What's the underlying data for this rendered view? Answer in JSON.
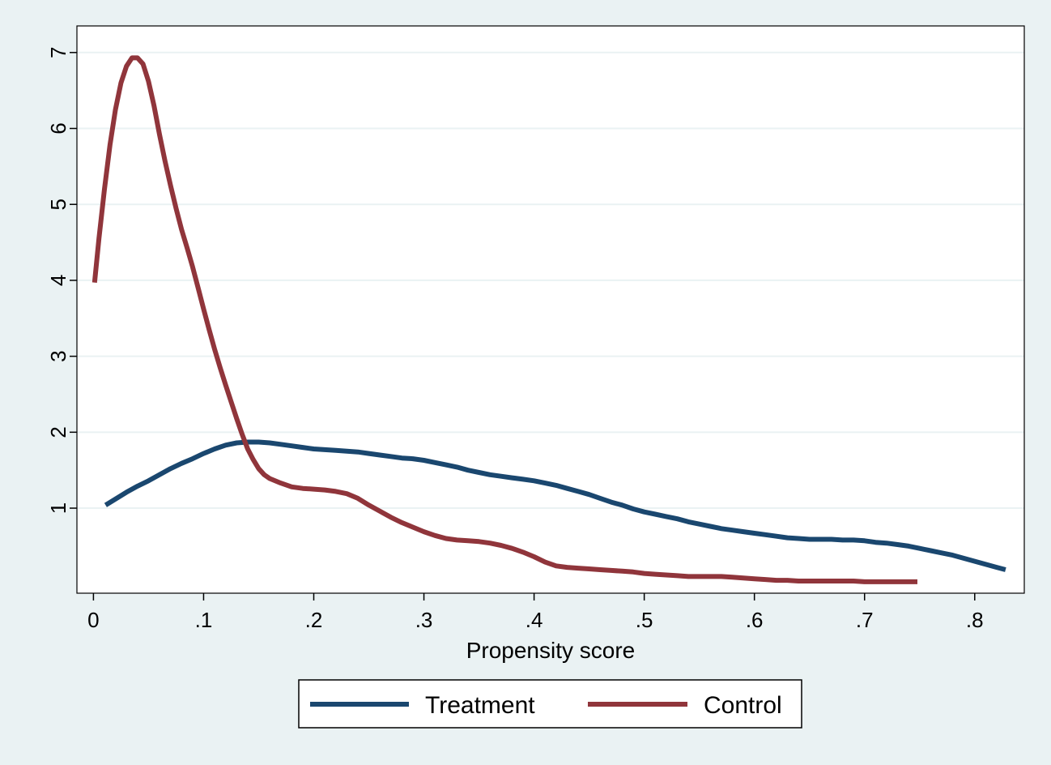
{
  "chart_data": {
    "type": "line",
    "title": "",
    "xlabel": "Propensity score",
    "ylabel": "",
    "xlim": [
      -0.015,
      0.845
    ],
    "ylim": [
      -0.12,
      7.35
    ],
    "x_ticks": [
      {
        "value": 0,
        "label": "0"
      },
      {
        "value": 0.1,
        "label": ".1"
      },
      {
        "value": 0.2,
        "label": ".2"
      },
      {
        "value": 0.3,
        "label": ".3"
      },
      {
        "value": 0.4,
        "label": ".4"
      },
      {
        "value": 0.5,
        "label": ".5"
      },
      {
        "value": 0.6,
        "label": ".6"
      },
      {
        "value": 0.7,
        "label": ".7"
      },
      {
        "value": 0.8,
        "label": ".8"
      }
    ],
    "y_ticks": [
      {
        "value": 1,
        "label": "1"
      },
      {
        "value": 2,
        "label": "2"
      },
      {
        "value": 3,
        "label": "3"
      },
      {
        "value": 4,
        "label": "4"
      },
      {
        "value": 5,
        "label": "5"
      },
      {
        "value": 6,
        "label": "6"
      },
      {
        "value": 7,
        "label": "7"
      }
    ],
    "grid": "horizontal",
    "legend_position": "bottom",
    "series": [
      {
        "name": "Treatment",
        "color": "#1a476f",
        "points": [
          [
            0.011,
            1.04
          ],
          [
            0.02,
            1.12
          ],
          [
            0.03,
            1.21
          ],
          [
            0.04,
            1.29
          ],
          [
            0.05,
            1.36
          ],
          [
            0.06,
            1.44
          ],
          [
            0.07,
            1.52
          ],
          [
            0.08,
            1.59
          ],
          [
            0.09,
            1.65
          ],
          [
            0.1,
            1.72
          ],
          [
            0.11,
            1.78
          ],
          [
            0.12,
            1.83
          ],
          [
            0.13,
            1.86
          ],
          [
            0.14,
            1.87
          ],
          [
            0.15,
            1.87
          ],
          [
            0.16,
            1.86
          ],
          [
            0.17,
            1.84
          ],
          [
            0.18,
            1.82
          ],
          [
            0.19,
            1.8
          ],
          [
            0.2,
            1.78
          ],
          [
            0.21,
            1.77
          ],
          [
            0.22,
            1.76
          ],
          [
            0.23,
            1.75
          ],
          [
            0.24,
            1.74
          ],
          [
            0.25,
            1.72
          ],
          [
            0.26,
            1.7
          ],
          [
            0.27,
            1.68
          ],
          [
            0.28,
            1.66
          ],
          [
            0.29,
            1.65
          ],
          [
            0.3,
            1.63
          ],
          [
            0.31,
            1.6
          ],
          [
            0.32,
            1.57
          ],
          [
            0.33,
            1.54
          ],
          [
            0.34,
            1.5
          ],
          [
            0.35,
            1.47
          ],
          [
            0.36,
            1.44
          ],
          [
            0.37,
            1.42
          ],
          [
            0.38,
            1.4
          ],
          [
            0.39,
            1.38
          ],
          [
            0.4,
            1.36
          ],
          [
            0.41,
            1.33
          ],
          [
            0.42,
            1.3
          ],
          [
            0.43,
            1.26
          ],
          [
            0.44,
            1.22
          ],
          [
            0.45,
            1.18
          ],
          [
            0.46,
            1.13
          ],
          [
            0.47,
            1.08
          ],
          [
            0.48,
            1.04
          ],
          [
            0.49,
            0.99
          ],
          [
            0.5,
            0.95
          ],
          [
            0.51,
            0.92
          ],
          [
            0.52,
            0.89
          ],
          [
            0.53,
            0.86
          ],
          [
            0.54,
            0.82
          ],
          [
            0.55,
            0.79
          ],
          [
            0.56,
            0.76
          ],
          [
            0.57,
            0.73
          ],
          [
            0.58,
            0.71
          ],
          [
            0.59,
            0.69
          ],
          [
            0.6,
            0.67
          ],
          [
            0.61,
            0.65
          ],
          [
            0.62,
            0.63
          ],
          [
            0.63,
            0.61
          ],
          [
            0.64,
            0.6
          ],
          [
            0.65,
            0.59
          ],
          [
            0.66,
            0.59
          ],
          [
            0.67,
            0.59
          ],
          [
            0.68,
            0.58
          ],
          [
            0.69,
            0.58
          ],
          [
            0.7,
            0.57
          ],
          [
            0.71,
            0.55
          ],
          [
            0.72,
            0.54
          ],
          [
            0.73,
            0.52
          ],
          [
            0.74,
            0.5
          ],
          [
            0.75,
            0.47
          ],
          [
            0.76,
            0.44
          ],
          [
            0.77,
            0.41
          ],
          [
            0.78,
            0.38
          ],
          [
            0.79,
            0.34
          ],
          [
            0.8,
            0.3
          ],
          [
            0.81,
            0.26
          ],
          [
            0.82,
            0.22
          ],
          [
            0.828,
            0.19
          ]
        ]
      },
      {
        "name": "Control",
        "color": "#90353b",
        "points": [
          [
            0.001,
            3.97
          ],
          [
            0.005,
            4.55
          ],
          [
            0.01,
            5.2
          ],
          [
            0.015,
            5.78
          ],
          [
            0.02,
            6.25
          ],
          [
            0.025,
            6.6
          ],
          [
            0.03,
            6.82
          ],
          [
            0.035,
            6.93
          ],
          [
            0.04,
            6.93
          ],
          [
            0.045,
            6.85
          ],
          [
            0.05,
            6.62
          ],
          [
            0.055,
            6.3
          ],
          [
            0.06,
            5.92
          ],
          [
            0.065,
            5.57
          ],
          [
            0.07,
            5.25
          ],
          [
            0.075,
            4.95
          ],
          [
            0.08,
            4.67
          ],
          [
            0.085,
            4.43
          ],
          [
            0.09,
            4.18
          ],
          [
            0.095,
            3.9
          ],
          [
            0.1,
            3.62
          ],
          [
            0.105,
            3.35
          ],
          [
            0.11,
            3.09
          ],
          [
            0.115,
            2.85
          ],
          [
            0.12,
            2.62
          ],
          [
            0.125,
            2.4
          ],
          [
            0.13,
            2.18
          ],
          [
            0.135,
            1.97
          ],
          [
            0.14,
            1.78
          ],
          [
            0.145,
            1.64
          ],
          [
            0.15,
            1.52
          ],
          [
            0.155,
            1.44
          ],
          [
            0.16,
            1.39
          ],
          [
            0.17,
            1.33
          ],
          [
            0.18,
            1.28
          ],
          [
            0.19,
            1.26
          ],
          [
            0.2,
            1.25
          ],
          [
            0.21,
            1.24
          ],
          [
            0.22,
            1.22
          ],
          [
            0.23,
            1.19
          ],
          [
            0.24,
            1.13
          ],
          [
            0.25,
            1.04
          ],
          [
            0.26,
            0.96
          ],
          [
            0.27,
            0.88
          ],
          [
            0.28,
            0.81
          ],
          [
            0.29,
            0.75
          ],
          [
            0.3,
            0.69
          ],
          [
            0.31,
            0.64
          ],
          [
            0.32,
            0.6
          ],
          [
            0.33,
            0.58
          ],
          [
            0.34,
            0.57
          ],
          [
            0.35,
            0.56
          ],
          [
            0.36,
            0.54
          ],
          [
            0.37,
            0.51
          ],
          [
            0.38,
            0.47
          ],
          [
            0.39,
            0.42
          ],
          [
            0.4,
            0.36
          ],
          [
            0.41,
            0.29
          ],
          [
            0.42,
            0.24
          ],
          [
            0.43,
            0.22
          ],
          [
            0.44,
            0.21
          ],
          [
            0.45,
            0.2
          ],
          [
            0.46,
            0.19
          ],
          [
            0.47,
            0.18
          ],
          [
            0.48,
            0.17
          ],
          [
            0.49,
            0.16
          ],
          [
            0.5,
            0.14
          ],
          [
            0.51,
            0.13
          ],
          [
            0.52,
            0.12
          ],
          [
            0.53,
            0.11
          ],
          [
            0.54,
            0.1
          ],
          [
            0.55,
            0.1
          ],
          [
            0.56,
            0.1
          ],
          [
            0.57,
            0.1
          ],
          [
            0.58,
            0.09
          ],
          [
            0.59,
            0.08
          ],
          [
            0.6,
            0.07
          ],
          [
            0.61,
            0.06
          ],
          [
            0.62,
            0.05
          ],
          [
            0.63,
            0.05
          ],
          [
            0.64,
            0.04
          ],
          [
            0.65,
            0.04
          ],
          [
            0.66,
            0.04
          ],
          [
            0.67,
            0.04
          ],
          [
            0.68,
            0.04
          ],
          [
            0.69,
            0.04
          ],
          [
            0.7,
            0.03
          ],
          [
            0.71,
            0.03
          ],
          [
            0.72,
            0.03
          ],
          [
            0.73,
            0.03
          ],
          [
            0.74,
            0.03
          ],
          [
            0.748,
            0.03
          ]
        ]
      }
    ]
  }
}
